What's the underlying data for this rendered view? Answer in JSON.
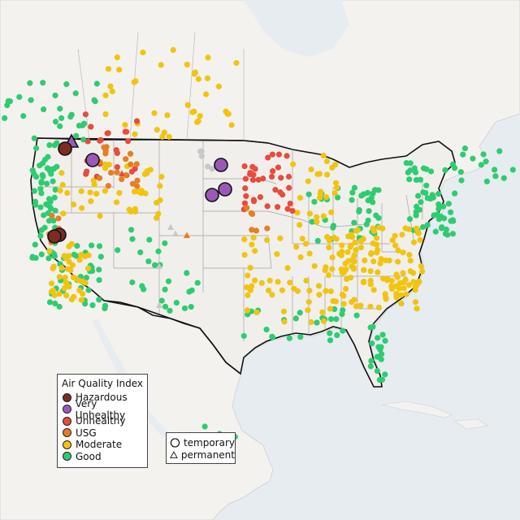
{
  "legend": {
    "title": "Air Quality Index",
    "categories": [
      {
        "key": "hazardous",
        "label": "Hazardous",
        "color": "#7e2b22"
      },
      {
        "key": "very_unhealthy",
        "label": "Very Unhealthy",
        "color": "#9b59b6"
      },
      {
        "key": "unhealthy",
        "label": "Unhealthy",
        "color": "#e74c3c"
      },
      {
        "key": "usg",
        "label": "USG",
        "color": "#e67e22"
      },
      {
        "key": "moderate",
        "label": "Moderate",
        "color": "#f1c40f"
      },
      {
        "key": "good",
        "label": "Good",
        "color": "#2ecc71"
      }
    ]
  },
  "station_types": [
    {
      "key": "temporary",
      "label": "temporary",
      "symbol": "circle"
    },
    {
      "key": "permanent",
      "label": "permanent",
      "symbol": "triangle"
    }
  ],
  "colors": {
    "ocean": "#e8eef2",
    "land": "#f3f1ee",
    "land_outside_us": "#f5f3f1",
    "borders": "#9a9a9a",
    "national_border": "#111111",
    "no_data": "#c8c8c8"
  }
}
